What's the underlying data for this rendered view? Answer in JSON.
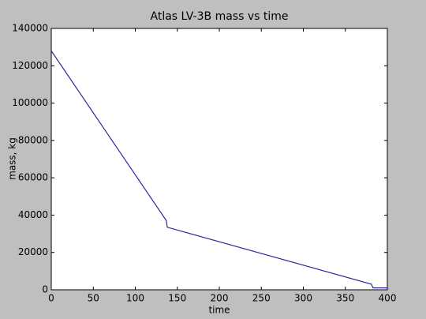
{
  "chart_data": {
    "type": "line",
    "title": "Atlas LV-3B mass vs time",
    "x_label": "time",
    "y_label": "mass, kg",
    "x": [
      0,
      137,
      138,
      381,
      383,
      400
    ],
    "series": [
      {
        "name": "mass",
        "color": "#2a2a9a",
        "values": [
          128000,
          37000,
          33500,
          3000,
          1000,
          1000
        ]
      }
    ],
    "xlim": [
      0,
      400
    ],
    "xticks": [
      0,
      50,
      100,
      150,
      200,
      250,
      300,
      350,
      400
    ],
    "ylim": [
      0,
      140000
    ],
    "yticks": [
      0,
      20000,
      40000,
      60000,
      80000,
      100000,
      120000,
      140000
    ],
    "grid": false
  }
}
